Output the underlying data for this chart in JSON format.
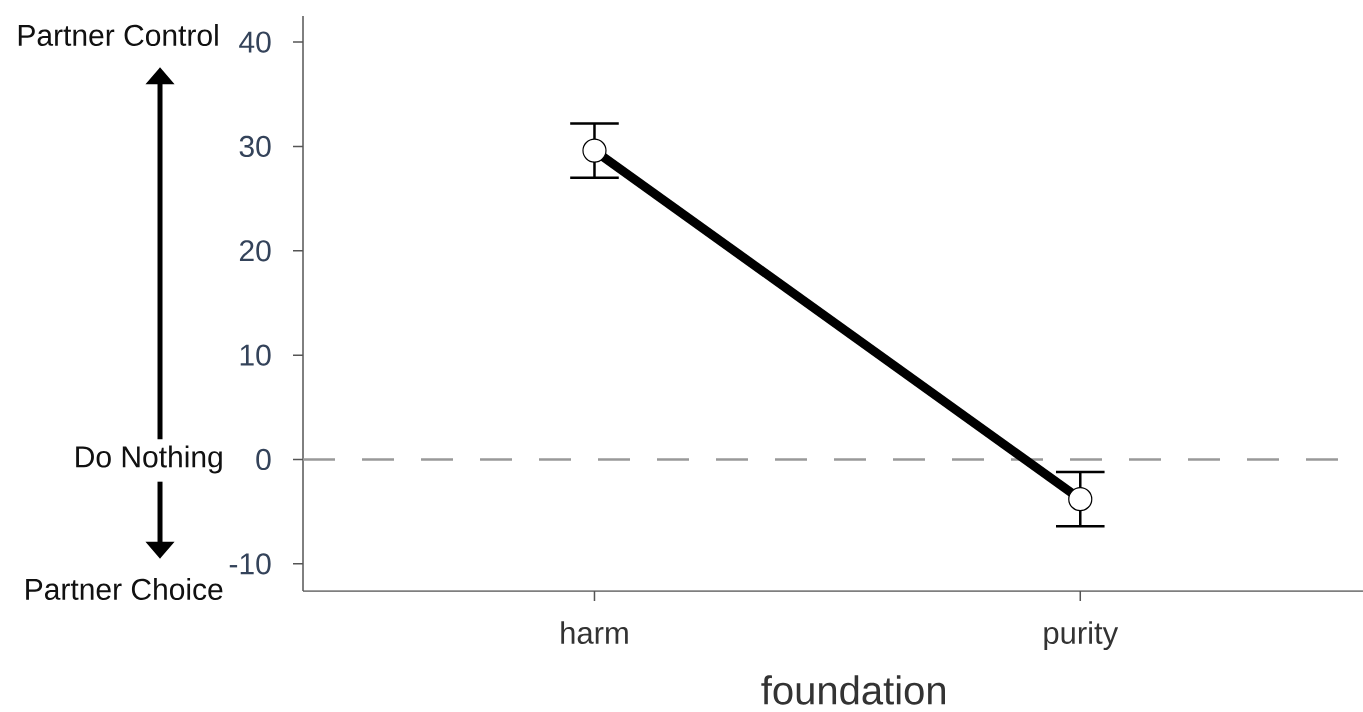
{
  "chart_data": {
    "type": "line",
    "xlabel": "foundation",
    "categories": [
      "harm",
      "purity"
    ],
    "values": [
      29.6,
      -3.8
    ],
    "errors": [
      2.6,
      2.6
    ],
    "color": "#000000",
    "marker": "circle",
    "line_style": "solid",
    "ylim": [
      -12.6,
      42.5
    ],
    "yticks": [
      -10,
      0,
      10,
      20,
      30,
      40
    ],
    "ref_lines": [
      {
        "axis": "y",
        "value": 0,
        "label": "Do Nothing",
        "color": "#999999",
        "line_style": "dashed"
      }
    ],
    "annotations": [
      "Partner Control",
      "Partner Choice"
    ]
  }
}
